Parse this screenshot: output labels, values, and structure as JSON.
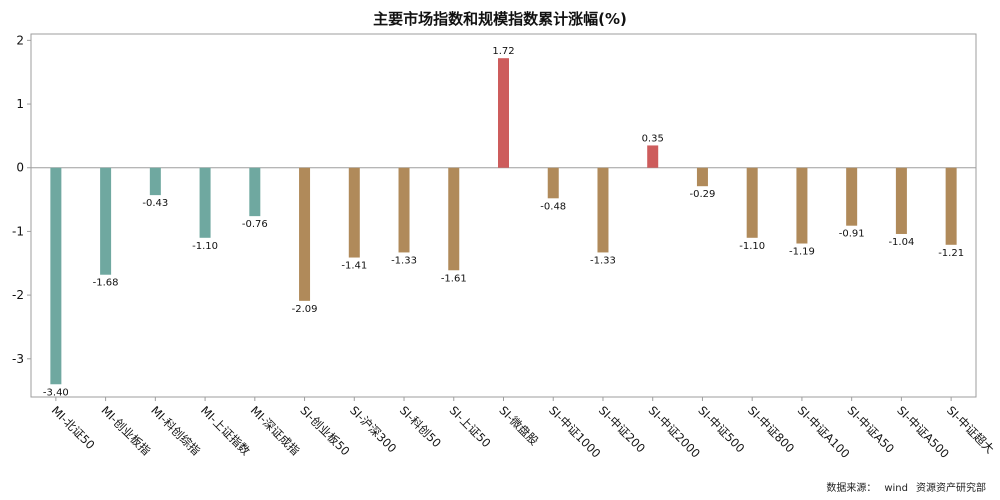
{
  "chart_data": {
    "type": "bar",
    "title": "主要市场指数和规模指数累计涨幅(%)",
    "xlabel": "",
    "ylabel": "",
    "ylim": [
      -3.6,
      2.1
    ],
    "yticks": [
      -3,
      -2,
      -1,
      0,
      1,
      2
    ],
    "grid": false,
    "categories": [
      "MI-北证50",
      "MI-创业板指",
      "MI-科创综指",
      "MI-上证指数",
      "MI-深证成指",
      "SI-创业板50",
      "SI-沪深300",
      "SI-科创50",
      "SI-上证50",
      "SI-微盘股",
      "SI-中证1000",
      "SI-中证200",
      "SI-中证2000",
      "SI-中证500",
      "SI-中证800",
      "SI-中证A100",
      "SI-中证A50",
      "SI-中证A500",
      "SI-中证超大"
    ],
    "values": [
      -3.4,
      -1.68,
      -0.43,
      -1.1,
      -0.76,
      -2.09,
      -1.41,
      -1.33,
      -1.61,
      1.72,
      -0.48,
      -1.33,
      0.35,
      -0.29,
      -1.1,
      -1.19,
      -0.91,
      -1.04,
      -1.21
    ],
    "value_labels": [
      "-3.40",
      "-1.68",
      "-0.43",
      "-1.10",
      "-0.76",
      "-2.09",
      "-1.41",
      "-1.33",
      "-1.61",
      "1.72",
      "-0.48",
      "-1.33",
      "0.35",
      "-0.29",
      "-1.10",
      "-1.19",
      "-0.91",
      "-1.04",
      "-1.21"
    ],
    "colors": {
      "MI": "#6fa8a0",
      "SI": "#b08a5a",
      "positive": "#cd5c5c",
      "axis": "#9e9e9e",
      "zero_line": "#9e9e9e"
    }
  },
  "footer": {
    "source_label": "数据来源：",
    "source_name": "wind",
    "org_name": "资源资产研究部"
  }
}
